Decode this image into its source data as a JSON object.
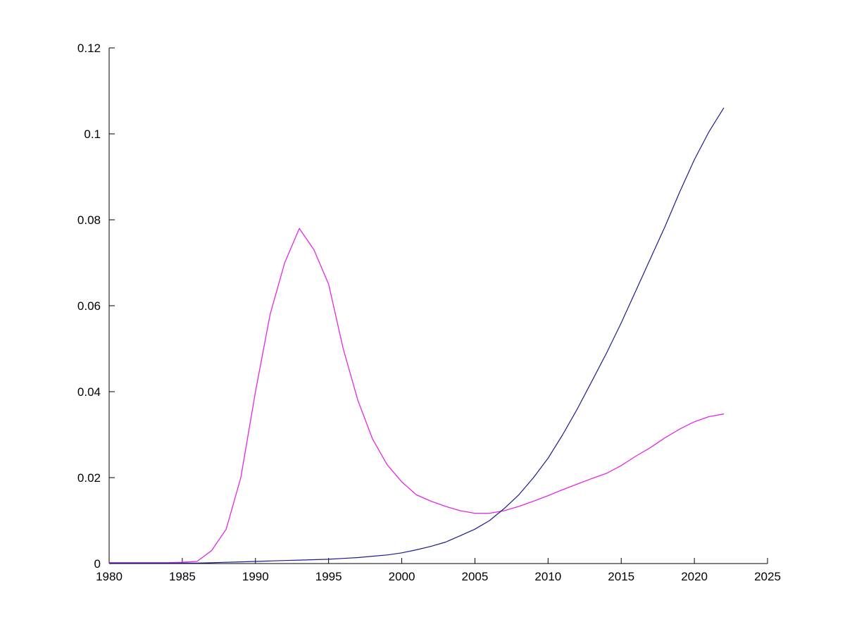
{
  "figure": {
    "background": "#ffffff",
    "axis_color": "#000000"
  },
  "chart_data": {
    "type": "line",
    "title": "",
    "xlabel": "",
    "ylabel": "",
    "grid": false,
    "legend": null,
    "xlim": [
      1980,
      2025
    ],
    "ylim": [
      0,
      0.12
    ],
    "xticks": [
      1980,
      1985,
      1990,
      1995,
      2000,
      2005,
      2010,
      2015,
      2020,
      2025
    ],
    "xtick_labels": [
      "1980",
      "1985",
      "1990",
      "1995",
      "2000",
      "2005",
      "2010",
      "2015",
      "2020",
      "2025"
    ],
    "yticks": [
      0,
      0.02,
      0.04,
      0.06,
      0.08,
      0.1,
      0.12
    ],
    "ytick_labels": [
      "0",
      "0.02",
      "0.04",
      "0.06",
      "0.08",
      "0.1",
      "0.12"
    ],
    "x": [
      1980,
      1981,
      1982,
      1983,
      1984,
      1985,
      1986,
      1987,
      1988,
      1989,
      1990,
      1991,
      1992,
      1993,
      1994,
      1995,
      1996,
      1997,
      1998,
      1999,
      2000,
      2001,
      2002,
      2003,
      2004,
      2005,
      2006,
      2007,
      2008,
      2009,
      2010,
      2011,
      2012,
      2013,
      2014,
      2015,
      2016,
      2017,
      2018,
      2019,
      2020,
      2021,
      2022
    ],
    "series": [
      {
        "name": "magenta-series",
        "color": "#e327e3",
        "width": 1.3,
        "values": [
          0.0002,
          0.0002,
          0.0002,
          0.0002,
          0.0002,
          0.0003,
          0.0005,
          0.003,
          0.008,
          0.02,
          0.04,
          0.058,
          0.07,
          0.078,
          0.073,
          0.065,
          0.05,
          0.038,
          0.029,
          0.023,
          0.019,
          0.016,
          0.0145,
          0.0133,
          0.0123,
          0.0117,
          0.0117,
          0.0123,
          0.0133,
          0.0145,
          0.0158,
          0.0172,
          0.0185,
          0.0198,
          0.021,
          0.0228,
          0.025,
          0.027,
          0.0293,
          0.0313,
          0.033,
          0.0342,
          0.0348
        ]
      },
      {
        "name": "blue-series",
        "color": "#1b1b8f",
        "width": 1.2,
        "values": [
          0.0001,
          0.0001,
          0.0001,
          0.0001,
          0.0001,
          0.0001,
          0.0001,
          0.0002,
          0.0003,
          0.0004,
          0.0005,
          0.0006,
          0.0007,
          0.0008,
          0.0009,
          0.001,
          0.0012,
          0.0014,
          0.0017,
          0.002,
          0.0025,
          0.0032,
          0.004,
          0.005,
          0.0065,
          0.008,
          0.01,
          0.0128,
          0.016,
          0.02,
          0.0245,
          0.03,
          0.036,
          0.0425,
          0.049,
          0.056,
          0.0635,
          0.071,
          0.0785,
          0.0865,
          0.094,
          0.1005,
          0.106
        ]
      }
    ]
  }
}
